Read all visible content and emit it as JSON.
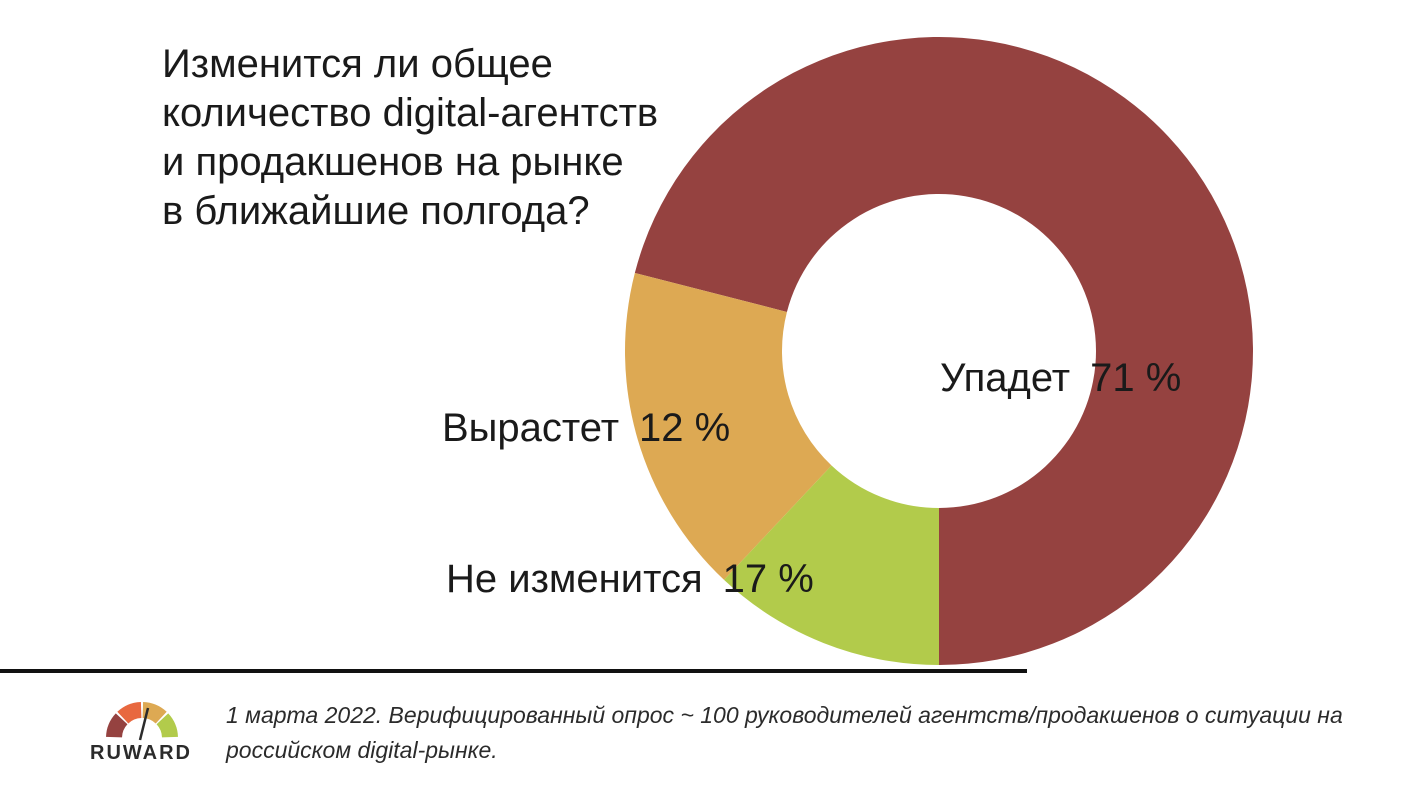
{
  "title": "Изменится ли общее\nколичество digital-агентств\nи продакшенов на рынке\nв ближайшие полгода?",
  "chart_data": {
    "type": "pie",
    "donut": true,
    "title": "Изменится ли общее количество digital-агентств и продакшенов на рынке в ближайшие полгода?",
    "slices": [
      {
        "label": "Упадет",
        "value": 71,
        "display": "71 %",
        "color": "#954240"
      },
      {
        "label": "Не изменится",
        "value": 17,
        "display": "17 %",
        "color": "#dda953"
      },
      {
        "label": "Вырастет",
        "value": 12,
        "display": "12 %",
        "color": "#b2cb4b"
      }
    ],
    "legend": "none"
  },
  "footer": {
    "logo_text": "RUWARD",
    "note": "1 марта 2022. Верифицированный опрос ~ 100 руководителей агентств/продакшенов о ситуации на российском digital-рынке."
  },
  "logo_colors": [
    "#954240",
    "#e8683f",
    "#dda953",
    "#b2cb4b"
  ]
}
